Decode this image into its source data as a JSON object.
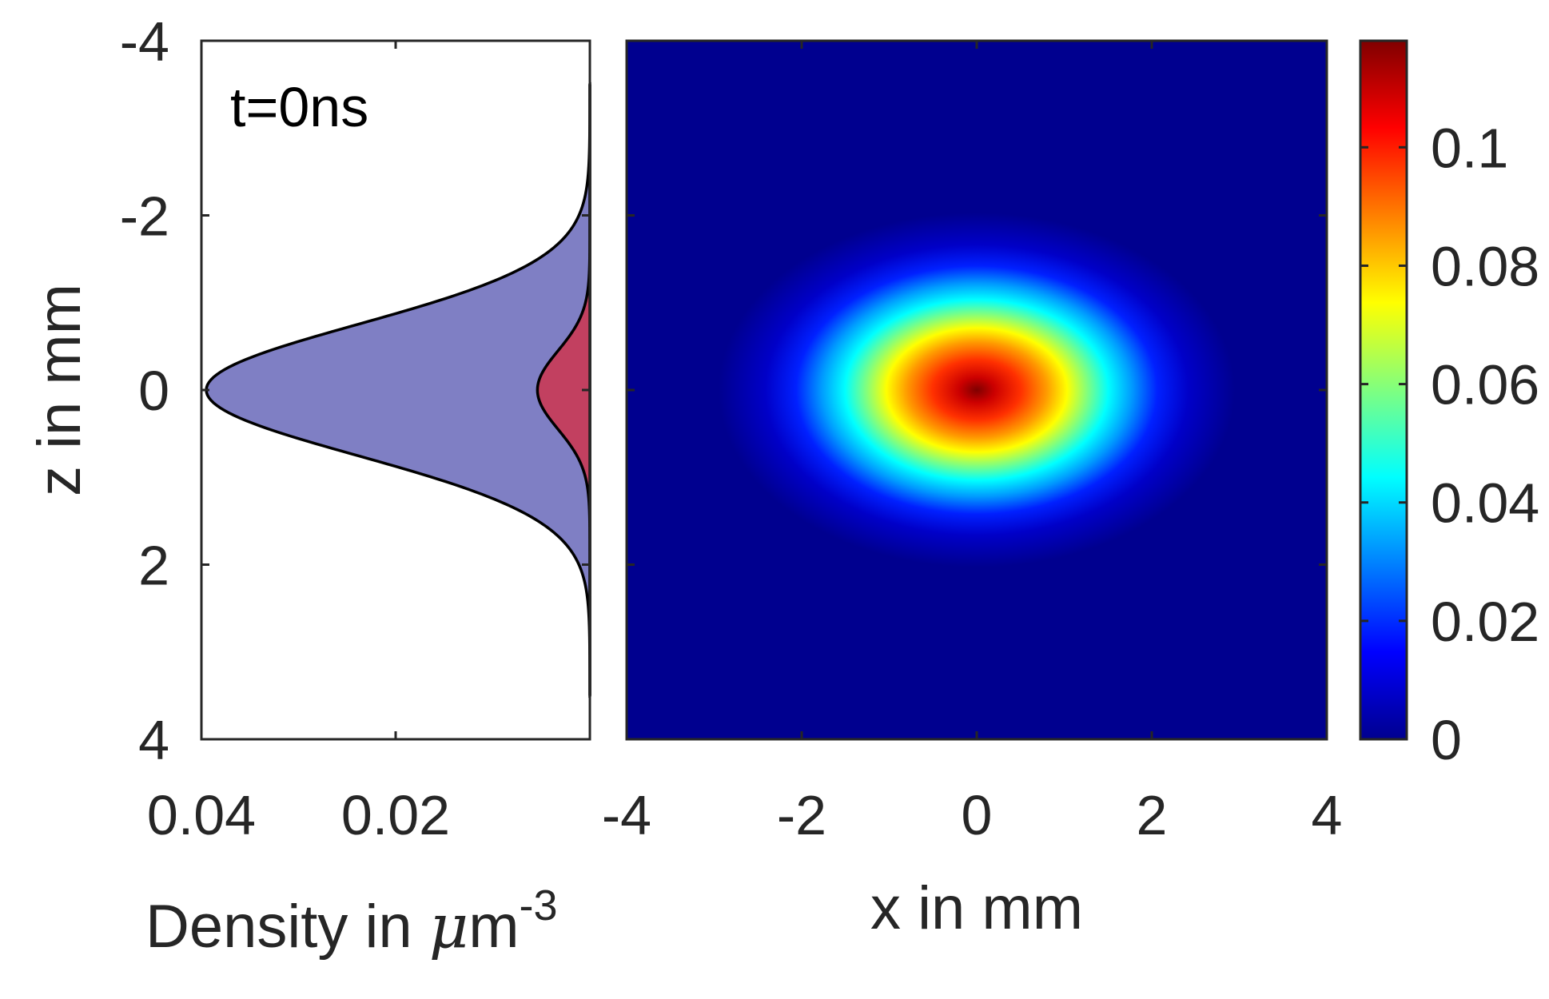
{
  "chart_data": [
    {
      "type": "area",
      "role": "density profile along z",
      "annotation": "t=0ns",
      "xlabel": {
        "prefix": "Density in ",
        "mu": "μ",
        "unit": "m",
        "exp": "-3"
      },
      "ylabel": "z in mm",
      "xlim": [
        0.04,
        0
      ],
      "x_reversed": true,
      "ylim": [
        -4,
        4
      ],
      "y_reversed": true,
      "x_ticks": [
        0.04,
        0.02
      ],
      "x_tick_labels": [
        "0.04",
        "0.02"
      ],
      "y_ticks": [
        -4,
        -2,
        0,
        2,
        4
      ],
      "y_tick_labels": [
        "-4",
        "-2",
        "0",
        "2",
        "4"
      ],
      "series": [
        {
          "peak": 0.0395,
          "sigma_mm": 0.75,
          "z_range": [
            -3.5,
            3.5
          ],
          "fill": "#7f7fc4"
        },
        {
          "peak": 0.0054,
          "sigma_mm": 0.45,
          "z_range": [
            -3.5,
            3.5
          ],
          "fill": "#c24060"
        }
      ]
    },
    {
      "type": "heatmap",
      "xlabel": "x in mm",
      "xlim": [
        -4,
        4
      ],
      "ylim": [
        -4,
        4
      ],
      "x_ticks": [
        -4,
        -2,
        0,
        2,
        4
      ],
      "x_tick_labels": [
        "-4",
        "-2",
        "0",
        "2",
        "4"
      ],
      "colormap": "jet",
      "peak_value": 0.118,
      "sigma_x_mm": 1.0,
      "sigma_z_mm": 0.7,
      "clim": [
        0,
        0.118
      ],
      "colorbar_ticks": [
        0,
        0.02,
        0.04,
        0.06,
        0.08,
        0.1
      ],
      "colorbar_tick_labels": [
        "0",
        "0.02",
        "0.04",
        "0.06",
        "0.08",
        "0.1"
      ]
    }
  ]
}
